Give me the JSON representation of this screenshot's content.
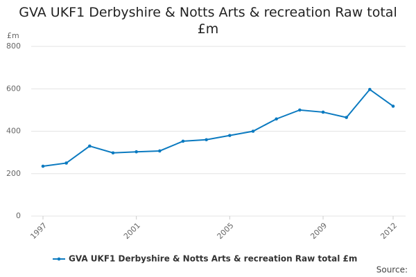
{
  "chart_data": {
    "type": "line",
    "title": "GVA UKF1 Derbyshire & Notts Arts & recreation Raw total £m",
    "y_unit": "£m",
    "source_label": "Source:",
    "x": [
      1997,
      1998,
      1999,
      2000,
      2001,
      2002,
      2003,
      2004,
      2005,
      2006,
      2007,
      2008,
      2009,
      2010,
      2011,
      2012
    ],
    "series": [
      {
        "name": "GVA UKF1 Derbyshire & Notts Arts & recreation Raw total £m",
        "color": "#0b7ac0",
        "values": [
          235,
          250,
          330,
          298,
          303,
          307,
          353,
          360,
          380,
          400,
          458,
          500,
          490,
          465,
          597,
          518
        ]
      }
    ],
    "xlim": [
      1997,
      2012
    ],
    "xticks": [
      1997,
      2001,
      2005,
      2009,
      2012
    ],
    "ylim": [
      0,
      800
    ],
    "yticks": [
      0,
      200,
      400,
      600,
      800
    ],
    "grid": true
  }
}
